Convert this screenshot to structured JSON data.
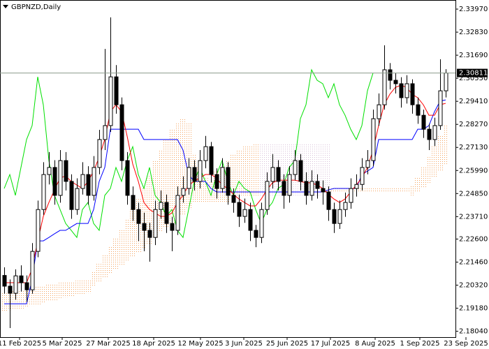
{
  "chart_data": {
    "type": "candlestick",
    "title": "GBPNZD,Daily",
    "xlim": [
      -0.75,
      80.75
    ],
    "ylim": [
      2.1775,
      2.3442
    ],
    "xticks": [
      {
        "value": 2.75,
        "label": "11 Feb 2025"
      },
      {
        "value": 10.375,
        "label": "5 Mar 2025"
      },
      {
        "value": 18.625,
        "label": "27 Mar 2025"
      },
      {
        "value": 26.75,
        "label": "18 Apr 2025"
      },
      {
        "value": 35.125,
        "label": "12 May 2025"
      },
      {
        "value": 42.875,
        "label": "3 Jun 2025"
      },
      {
        "value": 50.625,
        "label": "25 Jun 2025"
      },
      {
        "value": 58.375,
        "label": "17 Jul 2025"
      },
      {
        "value": 66.375,
        "label": "8 Aug 2025"
      },
      {
        "value": 74.375,
        "label": "1 Sep 2025"
      },
      {
        "value": 82.625,
        "label": "23 Sep 2025"
      }
    ],
    "yticks": [
      {
        "value": 2.3397,
        "label": "2.33970"
      },
      {
        "value": 2.3283,
        "label": "2.32830"
      },
      {
        "value": 2.3169,
        "label": "2.31690"
      },
      {
        "value": 2.3055,
        "label": "2.30550"
      },
      {
        "value": 2.2941,
        "label": "2.29410"
      },
      {
        "value": 2.2827,
        "label": "2.28270"
      },
      {
        "value": 2.2713,
        "label": "2.27130"
      },
      {
        "value": 2.2599,
        "label": "2.25990"
      },
      {
        "value": 2.2485,
        "label": "2.24850"
      },
      {
        "value": 2.2371,
        "label": "2.23710"
      },
      {
        "value": 2.226,
        "label": "2.22600"
      },
      {
        "value": 2.2146,
        "label": "2.21460"
      },
      {
        "value": 2.2032,
        "label": "2.20320"
      },
      {
        "value": 2.1918,
        "label": "2.19180"
      },
      {
        "value": 2.1804,
        "label": "2.18040"
      }
    ],
    "candle_color": "#000000",
    "up_body_color": "#ffffff",
    "price_line_color": "#8c9c8c",
    "candles": [
      [
        2.208,
        2.212,
        2.199,
        2.2027
      ],
      [
        2.2027,
        2.206,
        2.182,
        2.1992
      ],
      [
        2.1992,
        2.211,
        2.196,
        2.2078
      ],
      [
        2.2078,
        2.213,
        2.2,
        2.2044
      ],
      [
        2.2044,
        2.208,
        2.195,
        2.2009
      ],
      [
        2.2009,
        2.224,
        2.199,
        2.2199
      ],
      [
        2.2199,
        2.245,
        2.217,
        2.2406
      ],
      [
        2.2406,
        2.264,
        2.238,
        2.2579
      ],
      [
        2.2579,
        2.269,
        2.253,
        2.2614
      ],
      [
        2.2614,
        2.265,
        2.243,
        2.2476
      ],
      [
        2.2476,
        2.27,
        2.244,
        2.2648
      ],
      [
        2.2648,
        2.269,
        2.25,
        2.2545
      ],
      [
        2.2545,
        2.258,
        2.236,
        2.2406
      ],
      [
        2.2406,
        2.256,
        2.238,
        2.251
      ],
      [
        2.251,
        2.264,
        2.248,
        2.2579
      ],
      [
        2.2579,
        2.262,
        2.243,
        2.2476
      ],
      [
        2.2476,
        2.267,
        2.245,
        2.2614
      ],
      [
        2.2614,
        2.28,
        2.258,
        2.2752
      ],
      [
        2.2752,
        2.32,
        2.27,
        2.2821
      ],
      [
        2.2821,
        2.3356,
        2.279,
        2.3062
      ],
      [
        2.3062,
        2.312,
        2.288,
        2.2924
      ],
      [
        2.2924,
        2.296,
        2.26,
        2.2648
      ],
      [
        2.2648,
        2.269,
        2.243,
        2.2476
      ],
      [
        2.2476,
        2.252,
        2.235,
        2.2406
      ],
      [
        2.2406,
        2.244,
        2.225,
        2.2337
      ],
      [
        2.2337,
        2.239,
        2.22,
        2.2303
      ],
      [
        2.2303,
        2.234,
        2.2148,
        2.2268
      ],
      [
        2.2268,
        2.245,
        2.223,
        2.2406
      ],
      [
        2.2406,
        2.25,
        2.236,
        2.2441
      ],
      [
        2.2441,
        2.248,
        2.229,
        2.2337
      ],
      [
        2.2337,
        2.237,
        2.22,
        2.2303
      ],
      [
        2.2303,
        2.252,
        2.228,
        2.2476
      ],
      [
        2.2476,
        2.257,
        2.244,
        2.251
      ],
      [
        2.251,
        2.266,
        2.248,
        2.2614
      ],
      [
        2.2614,
        2.265,
        2.25,
        2.2545
      ],
      [
        2.2545,
        2.27,
        2.251,
        2.2648
      ],
      [
        2.2648,
        2.277,
        2.261,
        2.2717
      ],
      [
        2.2717,
        2.274,
        2.254,
        2.2579
      ],
      [
        2.2579,
        2.261,
        2.246,
        2.251
      ],
      [
        2.251,
        2.266,
        2.249,
        2.2614
      ],
      [
        2.2614,
        2.264,
        2.243,
        2.2476
      ],
      [
        2.2476,
        2.251,
        2.239,
        2.2441
      ],
      [
        2.2441,
        2.248,
        2.232,
        2.2372
      ],
      [
        2.2372,
        2.246,
        2.234,
        2.2406
      ],
      [
        2.2406,
        2.244,
        2.225,
        2.2303
      ],
      [
        2.2303,
        2.233,
        2.222,
        2.2268
      ],
      [
        2.2268,
        2.244,
        2.224,
        2.2406
      ],
      [
        2.2406,
        2.259,
        2.238,
        2.2545
      ],
      [
        2.2545,
        2.268,
        2.251,
        2.2614
      ],
      [
        2.2614,
        2.265,
        2.25,
        2.2545
      ],
      [
        2.2545,
        2.258,
        2.241,
        2.2476
      ],
      [
        2.2476,
        2.262,
        2.244,
        2.2579
      ],
      [
        2.2579,
        2.27,
        2.255,
        2.2648
      ],
      [
        2.2648,
        2.268,
        2.25,
        2.2545
      ],
      [
        2.2545,
        2.259,
        2.243,
        2.2476
      ],
      [
        2.2476,
        2.26,
        2.245,
        2.2545
      ],
      [
        2.2545,
        2.258,
        2.246,
        2.251
      ],
      [
        2.251,
        2.255,
        2.243,
        2.2493
      ],
      [
        2.2493,
        2.252,
        2.235,
        2.2406
      ],
      [
        2.2406,
        2.244,
        2.229,
        2.2337
      ],
      [
        2.2337,
        2.245,
        2.231,
        2.2406
      ],
      [
        2.2406,
        2.249,
        2.237,
        2.2441
      ],
      [
        2.2441,
        2.256,
        2.241,
        2.251
      ],
      [
        2.251,
        2.258,
        2.247,
        2.253
      ],
      [
        2.253,
        2.266,
        2.25,
        2.2614
      ],
      [
        2.2614,
        2.27,
        2.258,
        2.2648
      ],
      [
        2.2648,
        2.29,
        2.262,
        2.2855
      ],
      [
        2.2855,
        2.298,
        2.282,
        2.2924
      ],
      [
        2.2924,
        2.3218,
        2.29,
        2.3097
      ],
      [
        2.3097,
        2.313,
        2.3,
        2.3045
      ],
      [
        2.3045,
        2.308,
        2.298,
        2.3028
      ],
      [
        2.3028,
        2.306,
        2.291,
        2.2959
      ],
      [
        2.2959,
        2.307,
        2.293,
        2.3028
      ],
      [
        2.3028,
        2.305,
        2.288,
        2.2924
      ],
      [
        2.2924,
        2.296,
        2.283,
        2.2872
      ],
      [
        2.2872,
        2.29,
        2.276,
        2.2803
      ],
      [
        2.2803,
        2.283,
        2.27,
        2.2752
      ],
      [
        2.2752,
        2.286,
        2.272,
        2.2821
      ],
      [
        2.2821,
        2.3149,
        2.28,
        2.2993
      ],
      [
        2.2993,
        2.31,
        2.296,
        2.30811
      ]
    ],
    "tenkan": {
      "color": "#ff0000",
      "values": [
        2.2044,
        2.2044,
        2.2044,
        2.2044,
        2.2044,
        2.2113,
        2.2251,
        2.2372,
        2.2441,
        2.2503,
        2.2562,
        2.2572,
        2.2545,
        2.2527,
        2.251,
        2.2545,
        2.2596,
        2.2665,
        2.2752,
        2.289,
        2.2924,
        2.289,
        2.2769,
        2.2631,
        2.2545,
        2.2441,
        2.2406,
        2.2389,
        2.2372,
        2.2372,
        2.2389,
        2.2441,
        2.2476,
        2.2527,
        2.2545,
        2.2562,
        2.2579,
        2.2579,
        2.2562,
        2.2527,
        2.251,
        2.2482,
        2.2458,
        2.2441,
        2.2424,
        2.2424,
        2.2458,
        2.2503,
        2.2538,
        2.2551,
        2.2551,
        2.2551,
        2.2551,
        2.2545,
        2.2538,
        2.2538,
        2.2527,
        2.251,
        2.2482,
        2.2458,
        2.2441,
        2.2458,
        2.2493,
        2.2527,
        2.2562,
        2.2614,
        2.27,
        2.2821,
        2.2924,
        2.2976,
        2.301,
        2.3021,
        2.301,
        2.2976,
        2.2959,
        2.2924,
        2.2872,
        2.2872,
        2.2924,
        2.2931
      ]
    },
    "kijun": {
      "color": "#0000ff",
      "values": [
        2.194,
        2.194,
        2.194,
        2.194,
        2.194,
        2.2061,
        2.2251,
        2.2251,
        2.2268,
        2.2286,
        2.2303,
        2.2303,
        2.232,
        2.2337,
        2.2337,
        2.2337,
        2.2406,
        2.2545,
        2.2614,
        2.2803,
        2.2803,
        2.2803,
        2.2803,
        2.2803,
        2.2803,
        2.2752,
        2.2752,
        2.2752,
        2.2752,
        2.2752,
        2.2752,
        2.2752,
        2.27,
        2.2579,
        2.2545,
        2.2545,
        2.2545,
        2.251,
        2.2493,
        2.2493,
        2.2493,
        2.2493,
        2.2493,
        2.2493,
        2.2493,
        2.2493,
        2.2493,
        2.2493,
        2.2493,
        2.2493,
        2.2493,
        2.2493,
        2.2493,
        2.2493,
        2.2493,
        2.2493,
        2.2493,
        2.2493,
        2.2503,
        2.251,
        2.251,
        2.251,
        2.251,
        2.251,
        2.2579,
        2.2596,
        2.2614,
        2.2752,
        2.2752,
        2.2752,
        2.2752,
        2.2752,
        2.2752,
        2.2752,
        2.2803,
        2.2803,
        2.2821,
        2.289,
        2.2942,
        2.2948
      ]
    },
    "chikou": {
      "color": "#00e000",
      "values": [
        2.251,
        2.2579,
        2.2476,
        2.2614,
        2.2752,
        2.2821,
        2.3062,
        2.2924,
        2.2648,
        2.2476,
        2.2406,
        2.2337,
        2.2303,
        2.2268,
        2.2406,
        2.2441,
        2.2337,
        2.2303,
        2.2476,
        2.251,
        2.2614,
        2.2545,
        2.2648,
        2.2717,
        2.2579,
        2.251,
        2.2614,
        2.2476,
        2.2441,
        2.2372,
        2.2406,
        2.2303,
        2.2268,
        2.2406,
        2.2545,
        2.2614,
        2.2545,
        2.2476,
        2.2579,
        2.2648,
        2.2545,
        2.2476,
        2.2545,
        2.251,
        2.2493,
        2.2406,
        2.2337,
        2.2406,
        2.2441,
        2.251,
        2.253,
        2.2614,
        2.2648,
        2.2855,
        2.2924,
        2.3097,
        2.3045,
        2.3028,
        2.2959,
        2.3028,
        2.2924,
        2.2872,
        2.2803,
        2.2752,
        2.2821,
        2.2993,
        2.30811,
        null,
        null,
        null,
        null,
        null,
        null,
        null,
        null,
        null,
        null,
        null,
        null,
        null
      ]
    },
    "span_a": {
      "color": "#f4a460",
      "values": [
        2.1992,
        2.1999,
        2.2006,
        2.2009,
        2.2013,
        2.202,
        2.2027,
        2.203,
        2.2034,
        2.2041,
        2.2044,
        2.2047,
        2.2051,
        2.2054,
        2.2058,
        2.2061,
        2.2096,
        2.2137,
        2.2182,
        2.2227,
        2.2268,
        2.2303,
        2.2355,
        2.2406,
        2.2458,
        2.2517,
        2.2579,
        2.2648,
        2.27,
        2.2752,
        2.2803,
        2.2838,
        2.2855,
        2.2838,
        2.2683,
        2.2614,
        2.2562,
        2.2545,
        2.2596,
        2.2614,
        2.2648,
        2.2683,
        2.27,
        2.2717,
        2.2724,
        2.2731,
        2.2476,
        2.2476,
        2.2476,
        2.2476,
        2.2476,
        2.2476,
        2.2476,
        2.2476,
        2.2476,
        2.2476,
        2.2476,
        2.2476,
        2.2476,
        2.251,
        2.251,
        2.251,
        2.251,
        2.251,
        2.251,
        2.2517,
        2.2517,
        2.2517,
        2.2517,
        2.2517,
        2.2517,
        2.2517,
        2.2517,
        2.2527,
        2.2562,
        2.2614,
        2.2665,
        2.2717,
        2.2769,
        2.2821
      ]
    },
    "span_b": {
      "color": "#d8bfd8",
      "values": [
        2.1906,
        2.1909,
        2.1913,
        2.1916,
        2.1923,
        2.193,
        2.1937,
        2.1944,
        2.1951,
        2.1958,
        2.1965,
        2.1971,
        2.1978,
        2.1985,
        2.1989,
        2.1992,
        2.2027,
        2.2047,
        2.2068,
        2.2089,
        2.211,
        2.213,
        2.2151,
        2.2172,
        2.2192,
        2.2213,
        2.2234,
        2.2268,
        2.2293,
        2.2317,
        2.2337,
        2.2358,
        2.2382,
        2.2406,
        2.2441,
        2.2441,
        2.2441,
        2.2441,
        2.2441,
        2.2441,
        2.2441,
        2.2476,
        2.2476,
        2.2476,
        2.2476,
        2.2476,
        2.2734,
        2.2734,
        2.2734,
        2.2734,
        2.2734,
        2.2734,
        2.2734,
        2.2734,
        2.2734,
        2.2734,
        2.2734,
        2.2734,
        2.2734,
        2.2493,
        2.2493,
        2.2493,
        2.2493,
        2.2493,
        2.2493,
        2.2493,
        2.2493,
        2.2493,
        2.2493,
        2.2493,
        2.2493,
        2.2493,
        2.2493,
        2.2476,
        2.2493,
        2.251,
        2.2538,
        2.2562,
        2.2596,
        2.2631
      ]
    }
  }
}
